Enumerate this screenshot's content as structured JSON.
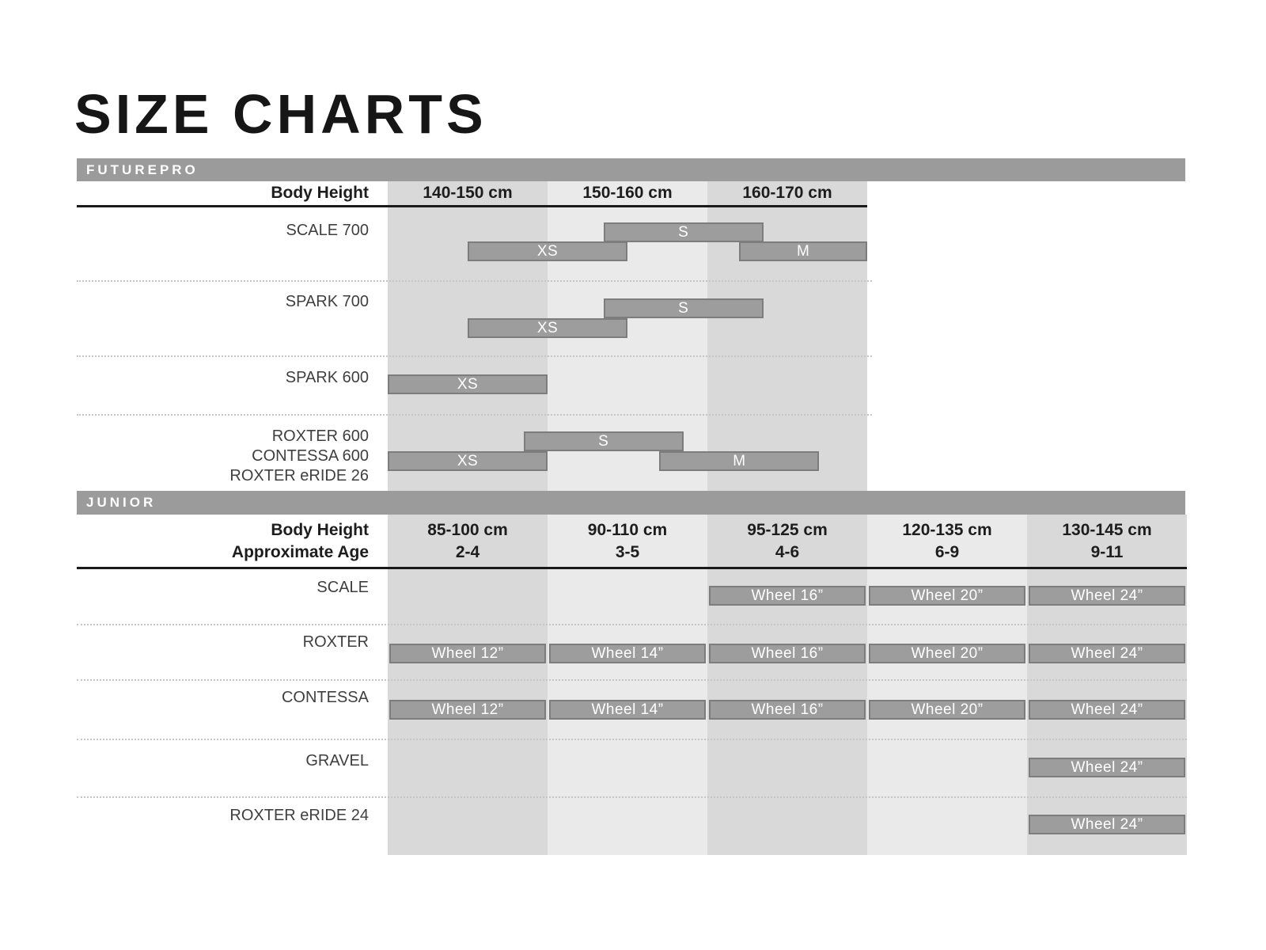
{
  "page": {
    "title": "SIZE CHARTS"
  },
  "colors": {
    "band_bg": "#9b9b9b",
    "band_text": "#ffffff",
    "column_dark": "#d9d9d9",
    "column_light": "#eaeaea",
    "bar_fill": "#9d9d9d",
    "bar_border": "#7d7d7d",
    "bar_text": "#ffffff",
    "heading_text": "#1d1d1d",
    "row_label_text": "#3f3f3f",
    "dotted_line": "#c6c6c6",
    "rule": "#1a1a1a",
    "title_text": "#161616"
  },
  "chart_data": [
    {
      "type": "bar",
      "section": "FUTUREPRO",
      "axis_label": "Body Height",
      "categories": [
        "140-150 cm",
        "150-160 cm",
        "160-170 cm"
      ],
      "category_shades": [
        "dark",
        "light",
        "dark"
      ],
      "cm_range": [
        140,
        170
      ],
      "rows": [
        {
          "labels": [
            "SCALE 700"
          ],
          "bars": [
            {
              "size": "S",
              "from_cm": 153.5,
              "to_cm": 163.5,
              "line": 0
            },
            {
              "size": "XS",
              "from_cm": 145,
              "to_cm": 155,
              "line": 1
            },
            {
              "size": "M",
              "from_cm": 162,
              "to_cm": 170,
              "line": 1
            }
          ]
        },
        {
          "labels": [
            "SPARK 700"
          ],
          "bars": [
            {
              "size": "S",
              "from_cm": 153.5,
              "to_cm": 163.5,
              "line": 0
            },
            {
              "size": "XS",
              "from_cm": 145,
              "to_cm": 155,
              "line": 1
            }
          ]
        },
        {
          "labels": [
            "SPARK 600"
          ],
          "bars": [
            {
              "size": "XS",
              "from_cm": 140,
              "to_cm": 150,
              "line": 0
            }
          ]
        },
        {
          "labels": [
            "ROXTER 600",
            "CONTESSA 600",
            "ROXTER eRIDE 26"
          ],
          "bars": [
            {
              "size": "S",
              "from_cm": 148.5,
              "to_cm": 158.5,
              "line": 0
            },
            {
              "size": "XS",
              "from_cm": 140,
              "to_cm": 150,
              "line": 1
            },
            {
              "size": "M",
              "from_cm": 157,
              "to_cm": 167,
              "line": 1
            }
          ]
        }
      ]
    },
    {
      "type": "bar",
      "section": "JUNIOR",
      "axis_label": "Body Height",
      "axis_label2": "Approximate Age",
      "categories": [
        "85-100 cm",
        "90-110 cm",
        "95-125 cm",
        "120-135 cm",
        "130-145 cm"
      ],
      "ages": [
        "2-4",
        "3-5",
        "4-6",
        "6-9",
        "9-11"
      ],
      "category_shades": [
        "dark",
        "light",
        "dark",
        "light",
        "dark"
      ],
      "rows": [
        {
          "labels": [
            "SCALE"
          ],
          "bars": [
            {
              "label": "Wheel 16”",
              "col": 2
            },
            {
              "label": "Wheel 20”",
              "col": 3
            },
            {
              "label": "Wheel 24”",
              "col": 4
            }
          ]
        },
        {
          "labels": [
            "ROXTER"
          ],
          "bars": [
            {
              "label": "Wheel 12”",
              "col": 0
            },
            {
              "label": "Wheel 14”",
              "col": 1
            },
            {
              "label": "Wheel 16”",
              "col": 2
            },
            {
              "label": "Wheel 20”",
              "col": 3
            },
            {
              "label": "Wheel 24”",
              "col": 4
            }
          ]
        },
        {
          "labels": [
            "CONTESSA"
          ],
          "bars": [
            {
              "label": "Wheel 12”",
              "col": 0
            },
            {
              "label": "Wheel 14”",
              "col": 1
            },
            {
              "label": "Wheel 16”",
              "col": 2
            },
            {
              "label": "Wheel 20”",
              "col": 3
            },
            {
              "label": "Wheel 24”",
              "col": 4
            }
          ]
        },
        {
          "labels": [
            "GRAVEL"
          ],
          "bars": [
            {
              "label": "Wheel 24”",
              "col": 4
            }
          ]
        },
        {
          "labels": [
            "ROXTER eRIDE 24"
          ],
          "bars": [
            {
              "label": "Wheel 24”",
              "col": 4
            }
          ]
        }
      ]
    }
  ]
}
